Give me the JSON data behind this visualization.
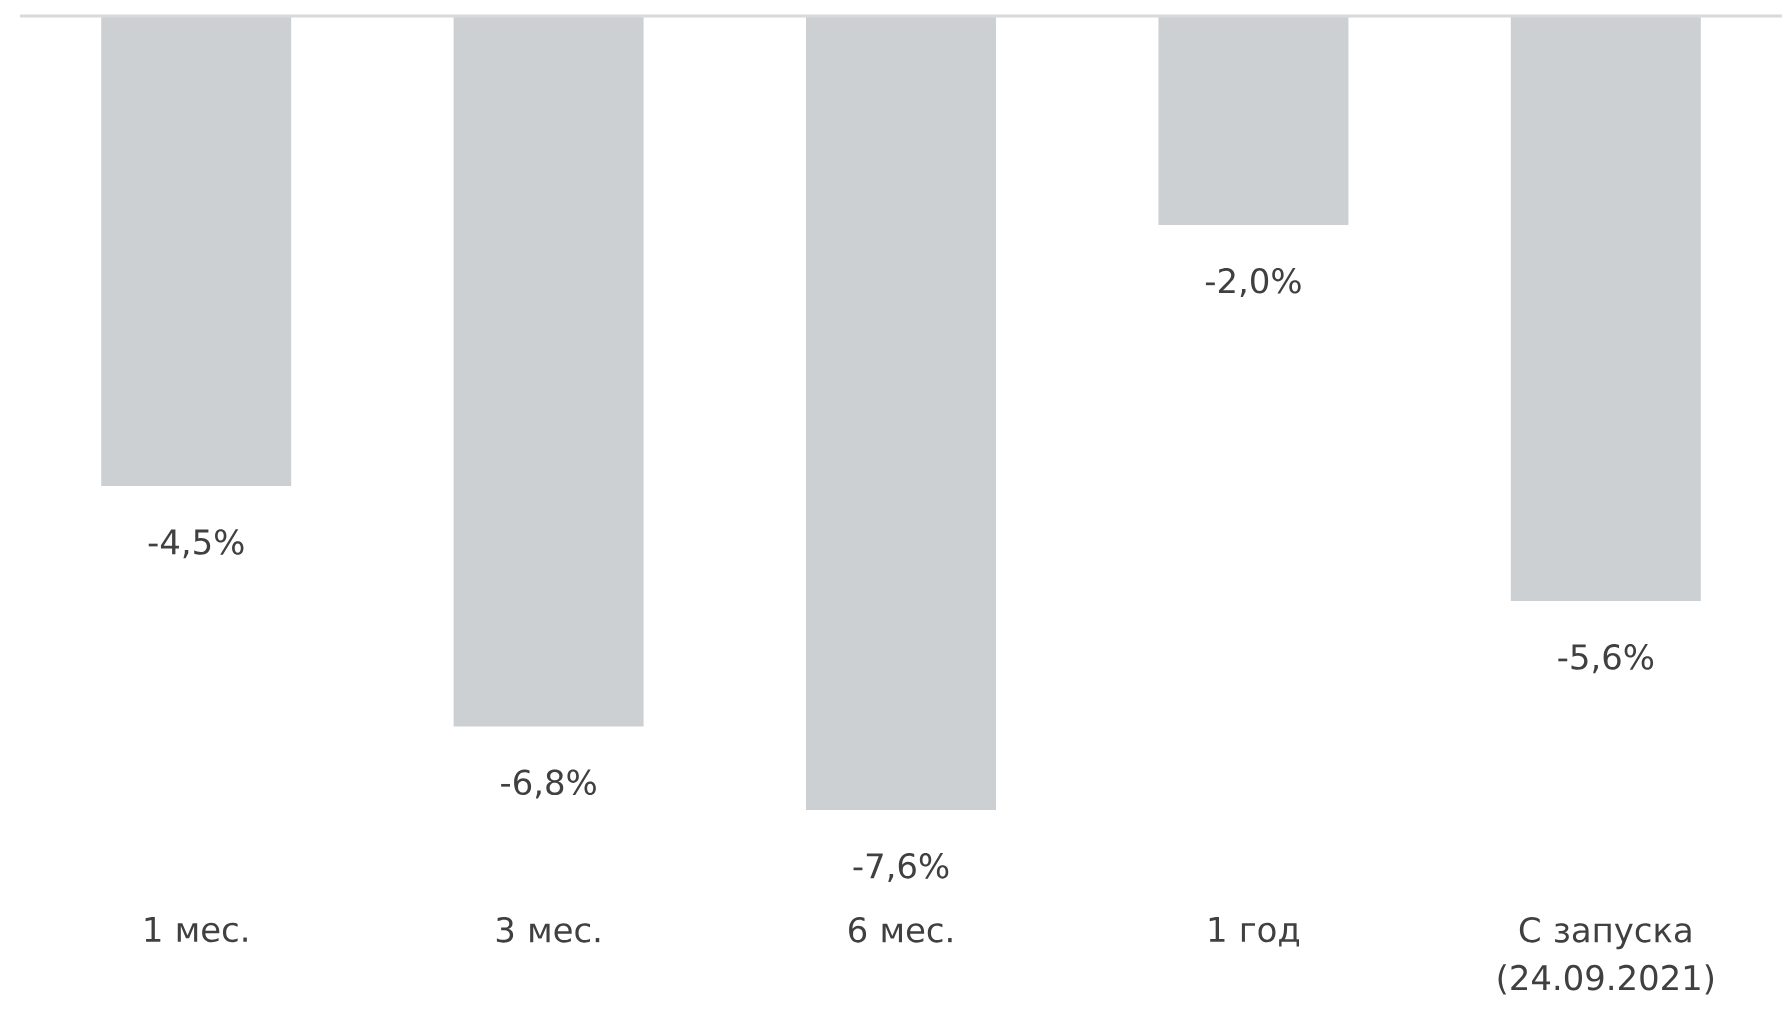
{
  "chart_data": {
    "type": "bar",
    "categories": [
      "1 мес.",
      "3 мес.",
      "6 мес.",
      "1 год",
      "С запуска (24.09.2021)"
    ],
    "values": [
      -4.5,
      -6.8,
      -7.6,
      -2.0,
      -5.6
    ],
    "value_labels": [
      "-4,5%",
      "-6,8%",
      "-7,6%",
      "-2,0%",
      "-5,6%"
    ],
    "color": "#cdd0d2"
  }
}
